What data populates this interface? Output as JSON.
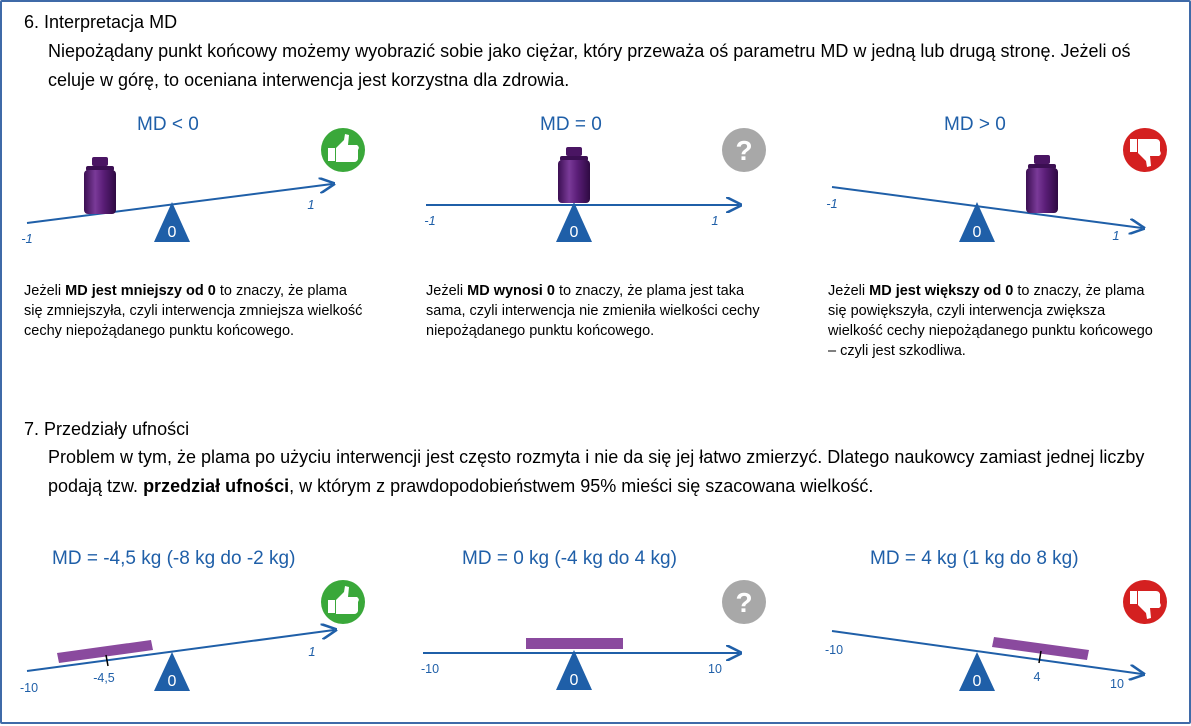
{
  "section6": {
    "heading": "6. Interpretacja MD",
    "paragraph": "Niepożądany punkt końcowy możemy wyobrazić sobie jako ciężar, który przeważa oś parametru MD w jedną lub drugą stronę. Jeżeli oś celuje w górę, to oceniana interwencja jest korzystna dla zdrowia.",
    "panels": [
      {
        "title": "MD < 0",
        "icon": "thumbs-up-icon",
        "icon_color": "#3aa83a",
        "left_label": "-1",
        "right_label": "1",
        "pivot_label": "0",
        "desc": [
          {
            "t": "Jeżeli ",
            "b": false
          },
          {
            "t": "MD jest mniejszy od 0",
            "b": true
          },
          {
            "t": " to znaczy, że plama się zmniejszyła, czyli interwencja zmniejsza wielkość cechy niepożądanego punktu końcowego.",
            "b": false
          }
        ]
      },
      {
        "title": "MD = 0",
        "icon": "question-icon",
        "icon_color": "#a8a8a8",
        "left_label": "-1",
        "right_label": "1",
        "pivot_label": "0",
        "desc": [
          {
            "t": "Jeżeli ",
            "b": false
          },
          {
            "t": "MD wynosi 0",
            "b": true
          },
          {
            "t": " to znaczy, że plama jest taka sama, czyli interwencja nie zmieniła wielkości cechy niepożądanego punktu końcowego.",
            "b": false
          }
        ]
      },
      {
        "title": "MD > 0",
        "icon": "thumbs-down-icon",
        "icon_color": "#d42020",
        "left_label": "-1",
        "right_label": "1",
        "pivot_label": "0",
        "desc": [
          {
            "t": "Jeżeli ",
            "b": false
          },
          {
            "t": "MD jest większy od 0",
            "b": true
          },
          {
            "t": " to znaczy, że plama się powiększyła, czyli interwencja zwiększa wielkość cechy niepożądanego punktu końcowego – czyli jest szkodliwa.",
            "b": false
          }
        ]
      }
    ]
  },
  "section7": {
    "heading": "7. Przedziały ufności",
    "paragraph_parts": [
      {
        "t": "Problem w tym, że plama po użyciu interwencji jest często rozmyta i nie da się jej łatwo zmierzyć. Dlatego naukowcy zamiast jednej liczby podają tzw. ",
        "b": false
      },
      {
        "t": "przedział ufności",
        "b": true
      },
      {
        "t": ", w którym z prawdopodobieństwem 95% mieści się szacowana wielkość.",
        "b": false
      }
    ],
    "panels": [
      {
        "title": "MD = -4,5 kg (-8 kg do -2 kg)",
        "icon": "thumbs-up-icon",
        "icon_color": "#3aa83a",
        "left_label": "-10",
        "right_label": "1",
        "pivot_label": "0",
        "point_label": "-4,5",
        "md": -4.5,
        "ci_low": -8,
        "ci_high": -2
      },
      {
        "title": "MD = 0 kg (-4 kg do 4 kg)",
        "icon": "question-icon",
        "icon_color": "#a8a8a8",
        "left_label": "-10",
        "right_label": "10",
        "pivot_label": "0",
        "point_label": "",
        "md": 0,
        "ci_low": -4,
        "ci_high": 4
      },
      {
        "title": "MD = 4 kg (1 kg do 8 kg)",
        "icon": "thumbs-down-icon",
        "icon_color": "#d42020",
        "left_label": "-10",
        "right_label": "10",
        "pivot_label": "0",
        "point_label": "4",
        "md": 4,
        "ci_low": 1,
        "ci_high": 8
      }
    ]
  },
  "colors": {
    "axis": "#1f5fa8",
    "weight": "#5b1e78",
    "bar": "#8a4a9e"
  }
}
